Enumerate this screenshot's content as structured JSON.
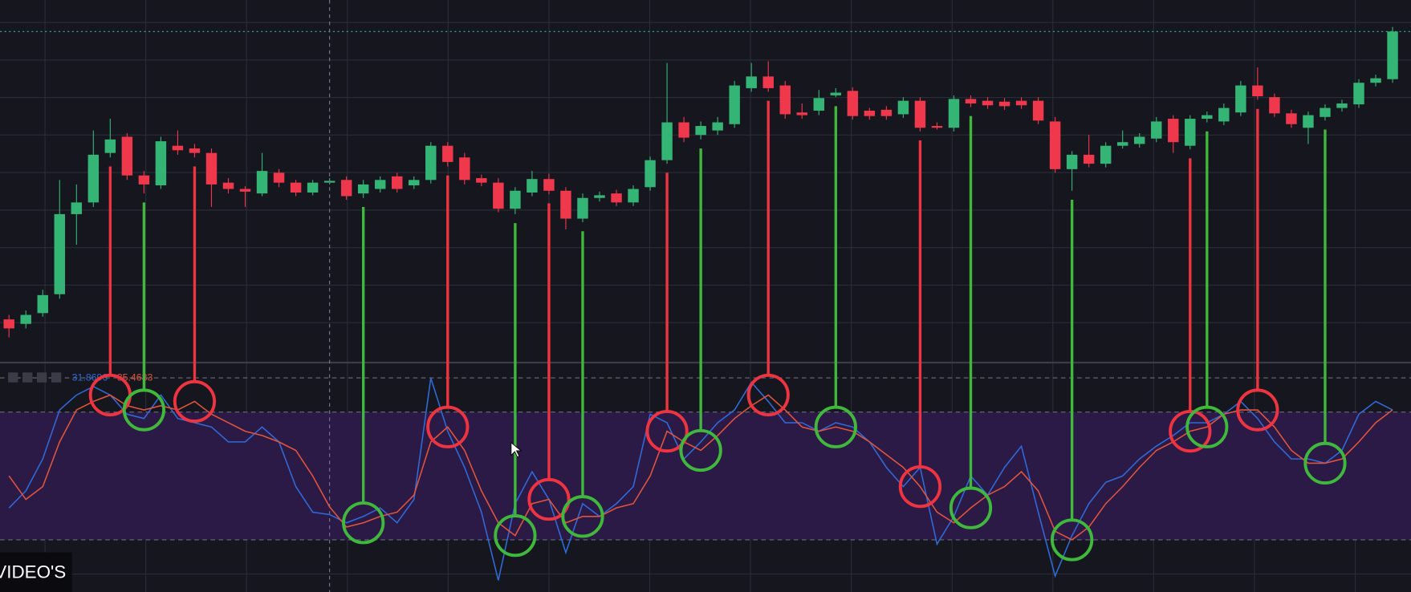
{
  "chart_data": [
    {
      "type": "candlestick",
      "ylim": [
        0,
        400
      ],
      "up_color": "#34b575",
      "down_color": "#f0384c",
      "open": [
        45,
        40,
        52,
        73,
        162,
        175,
        230,
        248,
        205,
        194,
        238,
        235,
        230,
        197,
        190,
        185,
        208,
        197,
        186,
        197,
        200,
        185,
        190,
        204,
        194,
        200,
        238,
        225,
        202,
        197,
        168,
        186,
        201,
        188,
        157,
        180,
        185,
        175,
        192,
        222,
        264,
        250,
        255,
        262,
        302,
        315,
        305,
        275,
        277,
        294,
        299,
        277,
        278,
        273,
        288,
        260,
        258,
        290,
        288,
        287,
        288,
        288,
        265,
        212,
        228,
        218,
        238,
        240,
        246,
        268,
        238,
        268,
        265,
        275,
        305,
        292,
        274,
        258,
        270,
        280,
        284,
        308,
        312
      ],
      "high": [
        50,
        55,
        78,
        200,
        195,
        255,
        268,
        252,
        210,
        248,
        255,
        240,
        235,
        202,
        193,
        230,
        212,
        200,
        200,
        202,
        204,
        200,
        204,
        208,
        204,
        242,
        242,
        230,
        206,
        202,
        192,
        210,
        207,
        192,
        185,
        187,
        189,
        194,
        226,
        330,
        270,
        265,
        270,
        310,
        330,
        332,
        310,
        285,
        300,
        302,
        303,
        280,
        282,
        292,
        292,
        264,
        294,
        294,
        292,
        291,
        292,
        292,
        270,
        232,
        250,
        242,
        255,
        252,
        270,
        272,
        272,
        276,
        285,
        310,
        325,
        296,
        278,
        276,
        284,
        289,
        312,
        317,
        370
      ],
      "low": [
        25,
        35,
        48,
        68,
        128,
        170,
        225,
        200,
        185,
        190,
        228,
        225,
        170,
        185,
        170,
        182,
        192,
        182,
        183,
        195,
        178,
        180,
        186,
        186,
        190,
        196,
        215,
        195,
        193,
        164,
        162,
        182,
        184,
        145,
        153,
        176,
        171,
        171,
        188,
        218,
        242,
        245,
        250,
        258,
        298,
        298,
        268,
        268,
        272,
        292,
        267,
        267,
        267,
        269,
        254,
        256,
        254,
        281,
        279,
        278,
        279,
        262,
        208,
        188,
        214,
        214,
        235,
        236,
        242,
        230,
        234,
        264,
        261,
        271,
        289,
        270,
        258,
        240,
        266,
        276,
        280,
        304,
        308
      ],
      "close": [
        35,
        50,
        72,
        162,
        175,
        228,
        245,
        205,
        195,
        243,
        233,
        230,
        195,
        190,
        187,
        210,
        197,
        186,
        197,
        199,
        182,
        195,
        200,
        190,
        200,
        238,
        220,
        200,
        197,
        168,
        188,
        201,
        188,
        157,
        180,
        183,
        175,
        190,
        222,
        264,
        247,
        260,
        264,
        305,
        315,
        302,
        273,
        272,
        291,
        297,
        271,
        271,
        271,
        288,
        258,
        258,
        290,
        285,
        283,
        282,
        283,
        266,
        212,
        228,
        218,
        238,
        242,
        248,
        265,
        242,
        268,
        272,
        280,
        305,
        293,
        274,
        262,
        272,
        280,
        285,
        308,
        313,
        365
      ]
    },
    {
      "type": "line",
      "ylim": [
        -4.5,
        102.4
      ],
      "band": [
        20,
        80
      ],
      "crosshair": 19,
      "series": [
        {
          "color": "#2f6bd8",
          "values": [
            35,
            43,
            58,
            81,
            88,
            92,
            88,
            79,
            77,
            88,
            77,
            75,
            73,
            66,
            66,
            73,
            66,
            45,
            33,
            31.8696,
            28,
            31,
            35,
            28,
            39,
            96,
            71,
            54,
            33,
            1,
            37,
            52,
            39,
            14,
            37,
            31,
            37,
            45,
            79,
            75,
            58,
            66,
            75,
            81,
            94,
            85,
            75,
            75,
            71,
            75,
            73,
            66,
            54,
            45,
            54,
            18,
            31,
            50,
            41,
            54,
            64,
            33,
            3,
            22,
            37,
            47,
            50,
            58,
            64,
            69,
            75,
            75,
            79,
            85,
            77,
            66,
            58,
            58,
            56,
            62,
            79,
            85,
            81
          ]
        },
        {
          "color": "#e0553c",
          "values": [
            50,
            39,
            45,
            66,
            81,
            85,
            88,
            83,
            81,
            83,
            81,
            85,
            79,
            75,
            71,
            69,
            66,
            62,
            50,
            35.4683,
            26,
            28,
            31,
            33,
            41,
            66,
            73,
            62,
            43,
            28,
            22,
            37,
            39,
            28,
            31,
            31,
            35,
            37,
            50,
            71,
            66,
            62,
            69,
            77,
            83,
            88,
            81,
            73,
            71,
            73,
            71,
            66,
            60,
            54,
            45,
            33,
            28,
            35,
            41,
            45,
            52,
            43,
            24,
            20,
            26,
            37,
            45,
            54,
            62,
            66,
            71,
            73,
            79,
            81,
            81,
            73,
            62,
            56,
            56,
            58,
            66,
            75,
            81
          ]
        }
      ],
      "markers": [
        {
          "index": 6,
          "color": "#ee3440"
        },
        {
          "index": 8,
          "color": "#3fb83c"
        },
        {
          "index": 11,
          "color": "#ee3440"
        },
        {
          "index": 21,
          "color": "#3fb83c"
        },
        {
          "index": 26,
          "color": "#ee3440"
        },
        {
          "index": 30,
          "color": "#3fb83c"
        },
        {
          "index": 32,
          "color": "#ee3440"
        },
        {
          "index": 34,
          "color": "#3fb83c"
        },
        {
          "index": 39,
          "color": "#ee3440"
        },
        {
          "index": 41,
          "color": "#3fb83c"
        },
        {
          "index": 45,
          "color": "#ee3440"
        },
        {
          "index": 49,
          "color": "#3fb83c"
        },
        {
          "index": 54,
          "color": "#ee3440"
        },
        {
          "index": 57,
          "color": "#3fb83c"
        },
        {
          "index": 63,
          "color": "#3fb83c"
        },
        {
          "index": 70,
          "color": "#ee3440"
        },
        {
          "index": 71,
          "color": "#3fb83c"
        },
        {
          "index": 74,
          "color": "#ee3440"
        },
        {
          "index": 78,
          "color": "#3fb83c"
        }
      ]
    }
  ],
  "caption": "VIDEO'S"
}
